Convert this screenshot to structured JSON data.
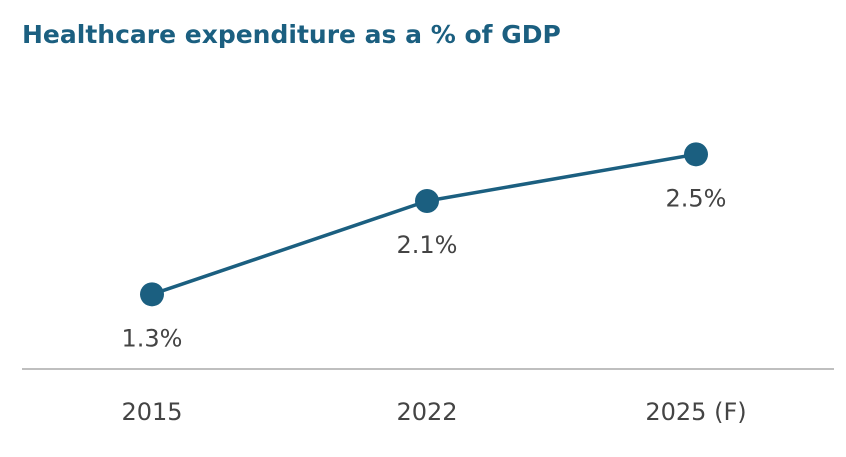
{
  "chart_data": {
    "type": "line",
    "title": "Healthcare expenditure as a % of GDP",
    "xlabel": "",
    "ylabel": "",
    "categories": [
      "2015",
      "2022",
      "2025 (F)"
    ],
    "values": [
      1.3,
      2.1,
      2.5
    ],
    "data_labels": [
      "1.3%",
      "2.1%",
      "2.5%"
    ],
    "ylim": [
      0,
      3.3
    ],
    "grid": false,
    "legend": "none",
    "colors": {
      "title": "#1b5f80",
      "line": "#1b5f80",
      "axis": "#aaaaaa",
      "text": "#444444"
    }
  }
}
